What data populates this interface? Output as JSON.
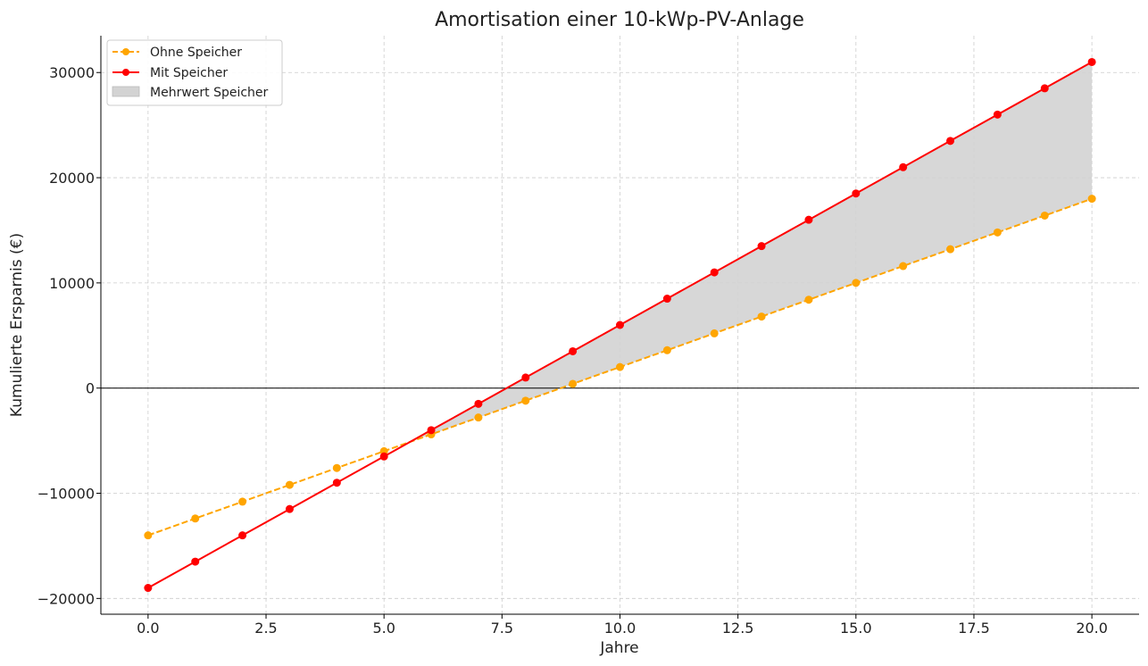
{
  "chart_data": {
    "type": "line",
    "title": "Amortisation einer 10-kWp-PV-Anlage",
    "xlabel": "Jahre",
    "ylabel": "Kumulierte Ersparnis (€)",
    "xlim": [
      -1,
      21
    ],
    "ylim": [
      -21500,
      33500
    ],
    "xticks": [
      0,
      2.5,
      5,
      7.5,
      10,
      12.5,
      15,
      17.5,
      20
    ],
    "xtick_labels": [
      "0.0",
      "2.5",
      "5.0",
      "7.5",
      "10.0",
      "12.5",
      "15.0",
      "17.5",
      "20.0"
    ],
    "yticks": [
      -20000,
      -10000,
      0,
      10000,
      20000,
      30000
    ],
    "ytick_labels": [
      "−20000",
      "−10000",
      "0",
      "10000",
      "20000",
      "30000"
    ],
    "grid": true,
    "legend_position": "top-left",
    "x": [
      0,
      1,
      2,
      3,
      4,
      5,
      6,
      7,
      8,
      9,
      10,
      11,
      12,
      13,
      14,
      15,
      16,
      17,
      18,
      19,
      20
    ],
    "series": [
      {
        "name": "Ohne Speicher",
        "color": "#FFA500",
        "style": "dashed",
        "values": [
          -14000,
          -12400,
          -10800,
          -9200,
          -7600,
          -6000,
          -4400,
          -2800,
          -1200,
          400,
          2000,
          3600,
          5200,
          6800,
          8400,
          10000,
          11600,
          13200,
          14800,
          16400,
          18000
        ]
      },
      {
        "name": "Mit Speicher",
        "color": "#FF0000",
        "style": "solid",
        "values": [
          -19000,
          -16500,
          -14000,
          -11500,
          -9000,
          -6500,
          -4000,
          -1500,
          1000,
          3500,
          6000,
          8500,
          11000,
          13500,
          16000,
          18500,
          21000,
          23500,
          26000,
          28500,
          31000
        ]
      }
    ],
    "fill_between": {
      "name": "Mehrwert Speicher",
      "color": "#d3d3d3",
      "where": "Mit Speicher > Ohne Speicher"
    }
  }
}
